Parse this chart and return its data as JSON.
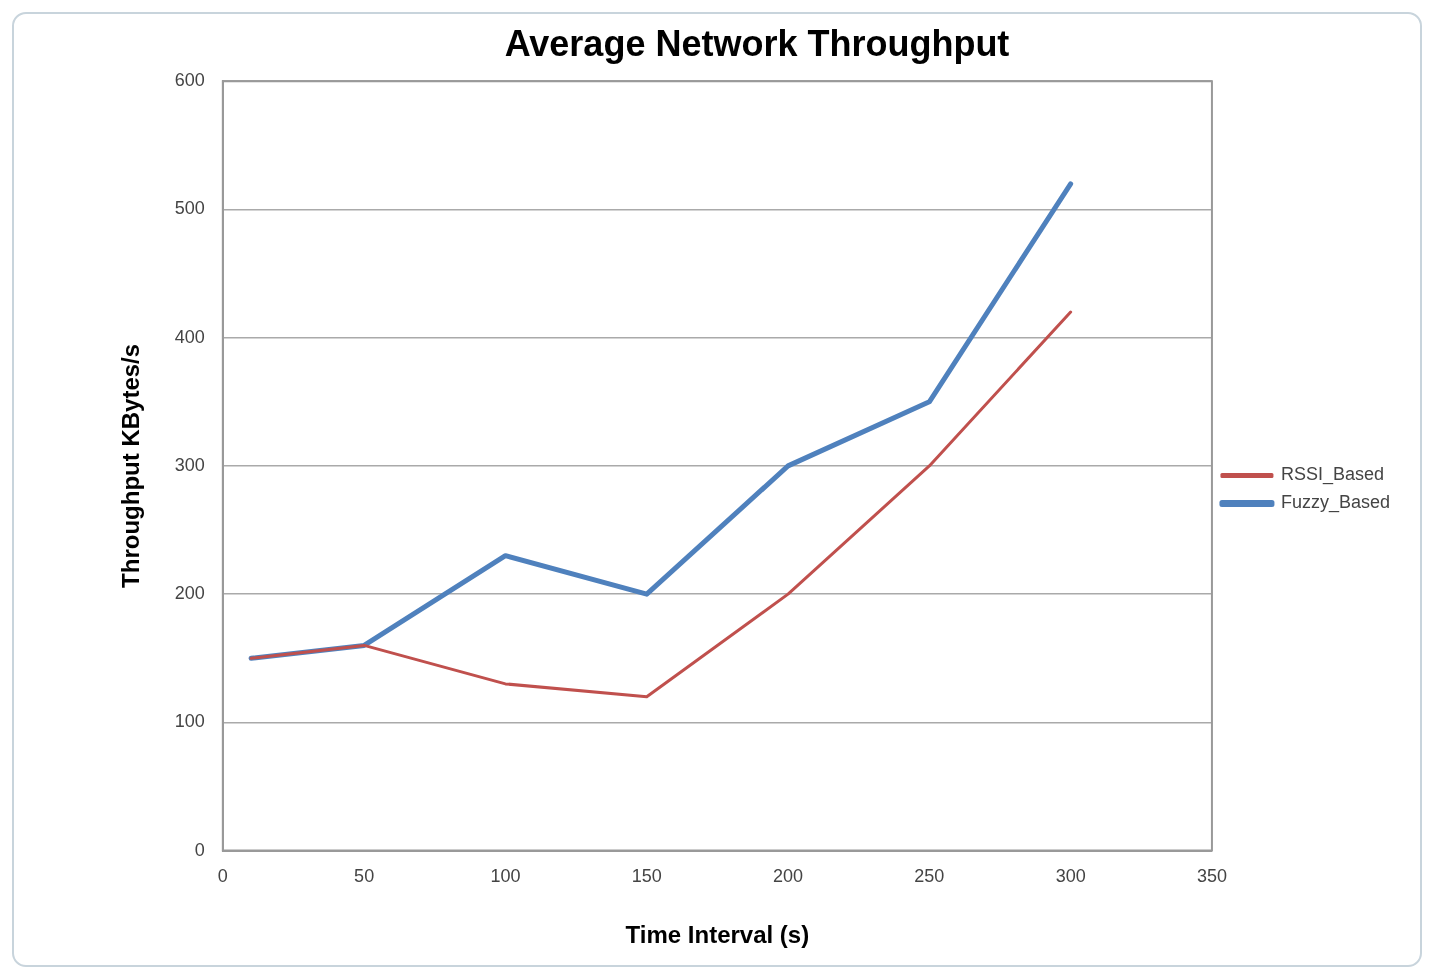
{
  "chart_data": {
    "type": "line",
    "title": "Average Network Throughput",
    "xlabel": "Time Interval (s)",
    "ylabel": "Throughput KBytes/s",
    "x": [
      10,
      50,
      100,
      150,
      200,
      250,
      300
    ],
    "series": [
      {
        "name": "Fuzzy_Based",
        "color": "#4f81bd",
        "values": [
          150,
          160,
          230,
          200,
          300,
          350,
          520
        ]
      },
      {
        "name": "RSSI_Based",
        "color": "#c0504d",
        "values": [
          150,
          160,
          130,
          120,
          200,
          300,
          420
        ]
      }
    ],
    "xlim": [
      0,
      350
    ],
    "xticks": [
      0,
      50,
      100,
      150,
      200,
      250,
      300,
      350
    ],
    "ylim": [
      0,
      600
    ],
    "yticks": [
      0,
      100,
      200,
      300,
      400,
      500,
      600
    ],
    "grid": "y",
    "legend": "right",
    "marker": "none",
    "line_style": "solid"
  }
}
